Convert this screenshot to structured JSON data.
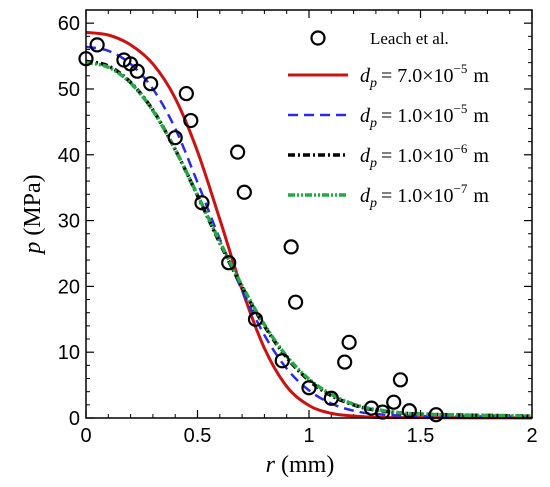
{
  "chart_data": {
    "type": "line",
    "xlabel": {
      "var": "r",
      "unit": "(mm)"
    },
    "ylabel": {
      "var": "p",
      "unit": "(MPa)"
    },
    "xlim": [
      0,
      2
    ],
    "ylim": [
      0,
      62
    ],
    "xticks": [
      "0",
      "0.5",
      "1",
      "1.5",
      "2"
    ],
    "yticks": [
      "0",
      "10",
      "20",
      "30",
      "40",
      "50",
      "60"
    ],
    "legend_position": "top-right",
    "scatter": {
      "name": "Leach et al.",
      "color": "#000000",
      "points": [
        [
          0.0,
          54.6
        ],
        [
          0.05,
          56.7
        ],
        [
          0.17,
          54.4
        ],
        [
          0.2,
          53.8
        ],
        [
          0.23,
          52.7
        ],
        [
          0.29,
          50.8
        ],
        [
          0.4,
          42.6
        ],
        [
          0.45,
          49.3
        ],
        [
          0.47,
          45.2
        ],
        [
          0.52,
          32.7
        ],
        [
          0.64,
          23.6
        ],
        [
          0.68,
          40.4
        ],
        [
          0.71,
          34.3
        ],
        [
          0.76,
          15.0
        ],
        [
          0.88,
          8.7
        ],
        [
          0.92,
          26.0
        ],
        [
          0.94,
          17.6
        ],
        [
          1.0,
          4.6
        ],
        [
          1.1,
          3.0
        ],
        [
          1.16,
          8.5
        ],
        [
          1.18,
          11.5
        ],
        [
          1.28,
          1.5
        ],
        [
          1.33,
          0.9
        ],
        [
          1.38,
          2.4
        ],
        [
          1.41,
          5.8
        ],
        [
          1.45,
          1.1
        ],
        [
          1.57,
          0.5
        ]
      ]
    },
    "series": [
      {
        "name": "dp = 7.0×10⁻⁵ m",
        "label_sub": "p",
        "label_value": "7.0×10",
        "label_exp": "−5",
        "label_unit": "m",
        "color": "#cc1111",
        "dash": "solid",
        "x": [
          0,
          0.1,
          0.2,
          0.3,
          0.4,
          0.5,
          0.6,
          0.7,
          0.8,
          0.9,
          1.0,
          1.1,
          1.2,
          1.3,
          1.5,
          2.0
        ],
        "y": [
          58.6,
          58.2,
          56.7,
          53.8,
          48.6,
          40.5,
          30.2,
          19.5,
          10.6,
          4.8,
          1.9,
          0.7,
          0.3,
          0.1,
          0.05,
          0.0
        ]
      },
      {
        "name": "dp = 1.0×10⁻⁵ m",
        "label_sub": "p",
        "label_value": "1.0×10",
        "label_exp": "−5",
        "label_unit": "m",
        "color": "#2a2aee",
        "dash": "dashed",
        "x": [
          0,
          0.1,
          0.2,
          0.3,
          0.4,
          0.5,
          0.6,
          0.7,
          0.8,
          0.9,
          1.0,
          1.1,
          1.2,
          1.3,
          1.5,
          2.0
        ],
        "y": [
          56.4,
          55.8,
          53.8,
          50.0,
          44.0,
          35.8,
          27.2,
          19.4,
          12.6,
          7.5,
          4.2,
          2.2,
          1.1,
          0.6,
          0.3,
          0.2
        ]
      },
      {
        "name": "dp = 1.0×10⁻⁶ m",
        "label_sub": "p",
        "label_value": "1.0×10",
        "label_exp": "−6",
        "label_unit": "m",
        "color": "#000000",
        "dash": "dashdot",
        "x": [
          0,
          0.1,
          0.2,
          0.3,
          0.4,
          0.5,
          0.6,
          0.7,
          0.8,
          0.9,
          1.0,
          1.1,
          1.2,
          1.3,
          1.5,
          2.0
        ],
        "y": [
          54.2,
          53.5,
          51.0,
          46.8,
          40.8,
          33.8,
          26.6,
          19.9,
          14.0,
          9.2,
          5.7,
          3.4,
          2.0,
          1.2,
          0.6,
          0.3
        ]
      },
      {
        "name": "dp = 1.0×10⁻⁷ m",
        "label_sub": "p",
        "label_value": "1.0×10",
        "label_exp": "−7",
        "label_unit": "m",
        "color": "#22aa44",
        "dash": "dashdotdot",
        "x": [
          0,
          0.1,
          0.2,
          0.3,
          0.4,
          0.5,
          0.6,
          0.7,
          0.8,
          0.9,
          1.0,
          1.1,
          1.2,
          1.3,
          1.5,
          2.0
        ],
        "y": [
          54.0,
          53.3,
          50.9,
          46.7,
          40.8,
          33.9,
          26.8,
          20.1,
          14.2,
          9.4,
          5.9,
          3.6,
          2.1,
          1.3,
          0.6,
          0.3
        ]
      }
    ]
  }
}
